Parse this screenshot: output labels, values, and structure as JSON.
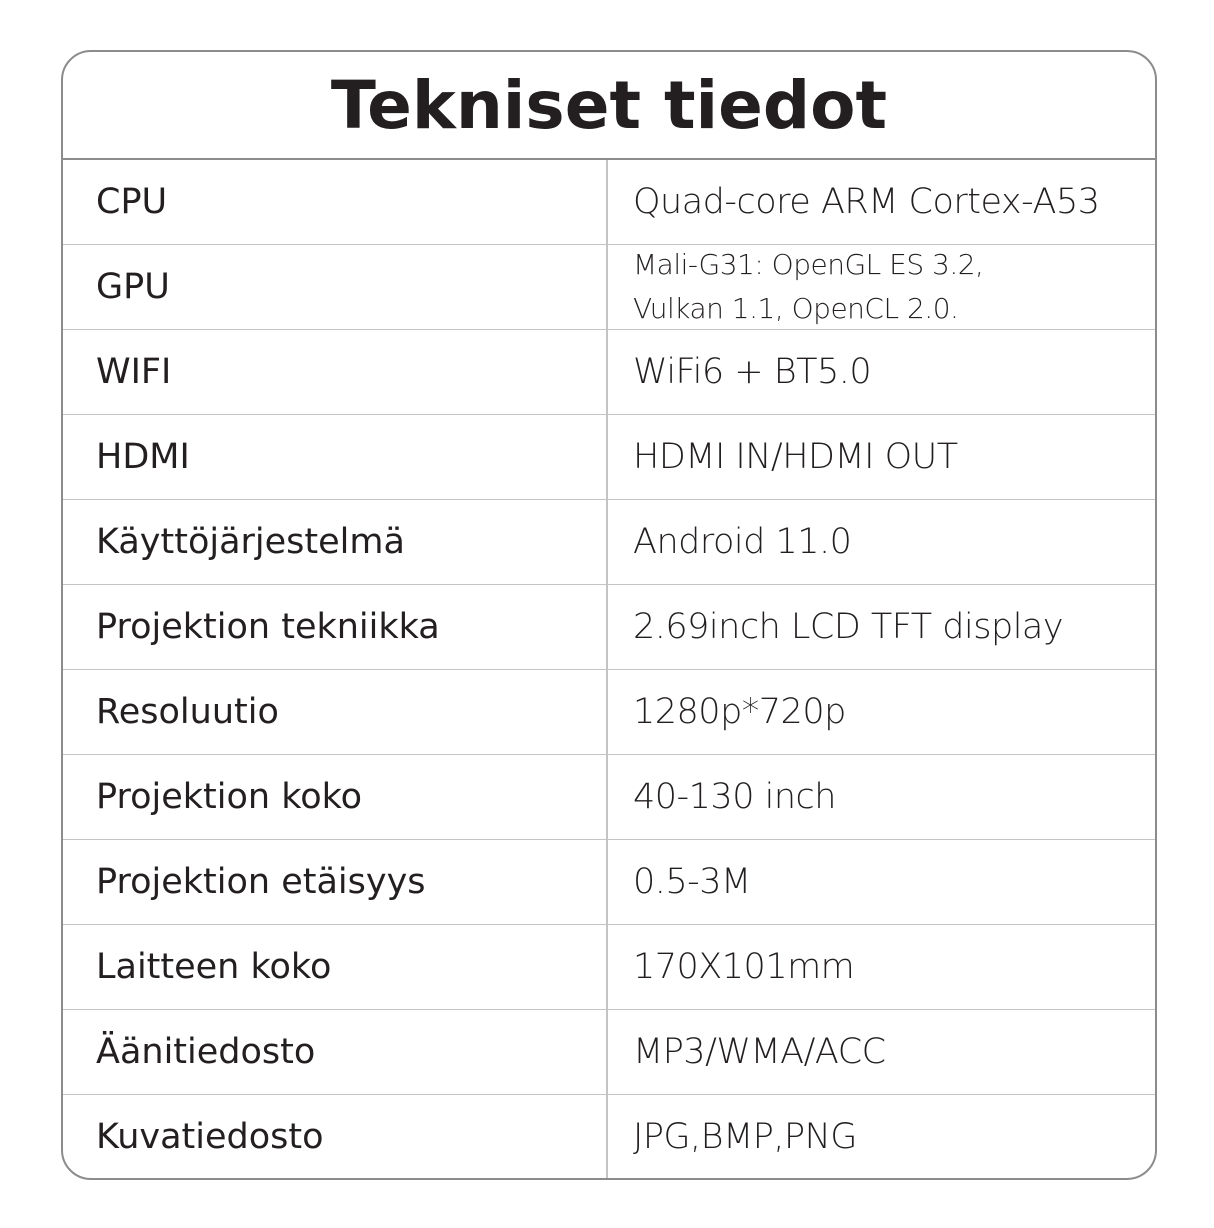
{
  "title": "Tekniset tiedot",
  "rows": [
    {
      "label": "CPU",
      "value": "Quad-core ARM Cortex-A53"
    },
    {
      "label": "GPU",
      "value_lines": [
        "Mali-G31: OpenGL ES 3.2,",
        "Vulkan 1.1, OpenCL 2.0."
      ]
    },
    {
      "label": "WIFI",
      "value": "WiFi6 + BT5.0"
    },
    {
      "label": "HDMI",
      "value": "HDMI IN/HDMI OUT"
    },
    {
      "label": "Käyttöjärjestelmä",
      "value": "Android 11.0"
    },
    {
      "label": "Projektion tekniikka",
      "value": "2.69inch LCD TFT display"
    },
    {
      "label": "Resoluutio",
      "value": "1280p*720p"
    },
    {
      "label": "Projektion koko",
      "value": "40-130 inch"
    },
    {
      "label": "Projektion etäisyys",
      "value": "0.5-3M"
    },
    {
      "label": "Laitteen koko",
      "value": "170X101mm"
    },
    {
      "label": "Äänitiedosto",
      "value": "MP3/WMA/ACC"
    },
    {
      "label": "Kuvatiedosto",
      "value": "JPG,BMP,PNG"
    }
  ]
}
